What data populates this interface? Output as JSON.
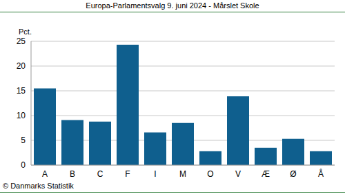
{
  "chart_data": {
    "type": "bar",
    "title": "Europa-Parlamentsvalg 9. juni 2024 - Mårslet Skole",
    "y_label": "Pct.",
    "source": "© Danmarks Statistik",
    "categories": [
      "A",
      "B",
      "C",
      "F",
      "I",
      "M",
      "O",
      "V",
      "Æ",
      "Ø",
      "Å"
    ],
    "values": [
      15.5,
      9.1,
      8.8,
      24.3,
      6.6,
      8.5,
      2.8,
      13.9,
      3.5,
      5.3,
      2.8
    ],
    "color": "#0f5f8e",
    "ylim": [
      0,
      25
    ],
    "yticks": [
      0,
      5,
      10,
      15,
      20,
      25
    ],
    "grid": true
  }
}
